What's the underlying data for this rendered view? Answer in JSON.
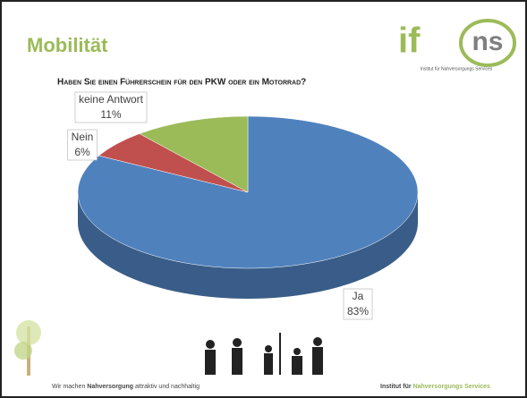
{
  "logo": {
    "left": "if",
    "right": "ns",
    "caption": "Institut für Nahversorgungs Services"
  },
  "chart_data": {
    "type": "pie",
    "title": "Mobilität",
    "subtitle": "Haben Sie einen Führerschein für den PKW oder ein Motorrad?",
    "categories": [
      "Ja",
      "Nein",
      "keine Antwort"
    ],
    "values": [
      83,
      6,
      11
    ],
    "value_labels": [
      "83%",
      "6%",
      "11%"
    ],
    "colors": [
      "#4f81bd",
      "#c0504d",
      "#9bbb59"
    ]
  },
  "footer": {
    "left": [
      "Wir machen ",
      "Nahversorgung",
      " attraktiv und nachhaltig"
    ],
    "right": [
      "Institut für ",
      "Nahversorgungs Services"
    ]
  }
}
